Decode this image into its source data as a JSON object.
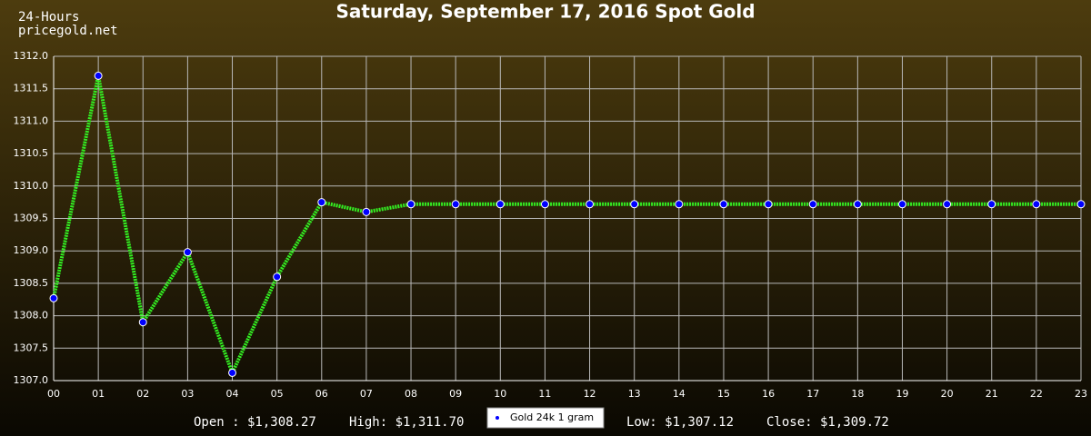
{
  "chart_data": {
    "type": "line",
    "title": "Saturday, September 17, 2016 Spot Gold",
    "annotations": [
      "24-Hours",
      "pricegold.net",
      "Open : $1,308.27",
      "High: $1,311.70",
      "Low: $1,307.12",
      "Close: $1,309.72"
    ],
    "categories": [
      "00",
      "01",
      "02",
      "03",
      "04",
      "05",
      "06",
      "07",
      "08",
      "09",
      "10",
      "11",
      "12",
      "13",
      "14",
      "15",
      "16",
      "17",
      "18",
      "19",
      "20",
      "21",
      "22",
      "23"
    ],
    "series": [
      {
        "name": "Gold 24k 1 gram",
        "color": "#33ee22",
        "marker_color": "#0000ff",
        "values": [
          1308.27,
          1311.7,
          1307.9,
          1308.98,
          1307.12,
          1308.6,
          1309.75,
          1309.6,
          1309.72,
          1309.72,
          1309.72,
          1309.72,
          1309.72,
          1309.72,
          1309.72,
          1309.72,
          1309.72,
          1309.72,
          1309.72,
          1309.72,
          1309.72,
          1309.72,
          1309.72,
          1309.72
        ]
      }
    ],
    "ylim": [
      1307,
      1312
    ],
    "yticks": [
      {
        "value": 1307,
        "label": "1307.0"
      },
      {
        "value": 1307.5,
        "label": "1307.5"
      },
      {
        "value": 1308,
        "label": "1308.0"
      },
      {
        "value": 1308.5,
        "label": "1308.5"
      },
      {
        "value": 1309,
        "label": "1309.0"
      },
      {
        "value": 1309.5,
        "label": "1309.5"
      },
      {
        "value": 1310,
        "label": "1310.0"
      },
      {
        "value": 1310.5,
        "label": "1310.5"
      },
      {
        "value": 1311,
        "label": "1311.0"
      },
      {
        "value": 1311.5,
        "label": "1311.5"
      },
      {
        "value": 1312,
        "label": "1312.0"
      }
    ],
    "grid": true
  }
}
